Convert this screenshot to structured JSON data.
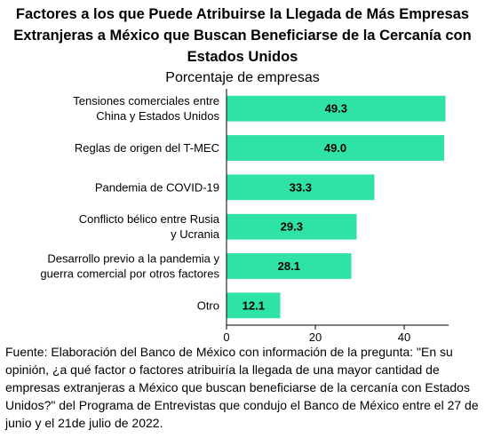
{
  "chart_data": {
    "type": "bar",
    "orientation": "horizontal",
    "title": "Factores a los que Puede Atribuirse la Llegada de Más Empresas Extranjeras a México que Buscan Beneficiarse de la Cercanía con Estados Unidos",
    "subtitle": "Porcentaje de empresas",
    "categories": [
      [
        "Tensiones comerciales entre",
        "China y Estados Unidos"
      ],
      [
        "Reglas de origen del T-MEC"
      ],
      [
        "Pandemia de COVID-19"
      ],
      [
        "Conflicto bélico entre Rusia",
        "y Ucrania"
      ],
      [
        "Desarrollo previo a la pandemia y",
        "guerra comercial por otros factores"
      ],
      [
        "Otro"
      ]
    ],
    "values": [
      49.3,
      49.0,
      33.3,
      29.3,
      28.1,
      12.1
    ],
    "data_labels": [
      "49.3",
      "49.0",
      "33.3",
      "29.3",
      "28.1",
      "12.1"
    ],
    "xticks": [
      0,
      20,
      40
    ],
    "xlim": [
      0,
      50
    ],
    "bar_color": "#2EE3A5",
    "grid": false,
    "legend": "none",
    "xlabel": "",
    "ylabel": ""
  },
  "footnote": "Fuente: Elaboración del Banco de México con información de la pregunta: \"En su opinión, ¿a qué factor o factores atribuiría la llegada de una mayor cantidad de empresas extranjeras a México que buscan beneficiarse de la cercanía con Estados Unidos?\" del Programa de Entrevistas que condujo el Banco de México entre el 27 de junio y el 21de julio de 2022."
}
